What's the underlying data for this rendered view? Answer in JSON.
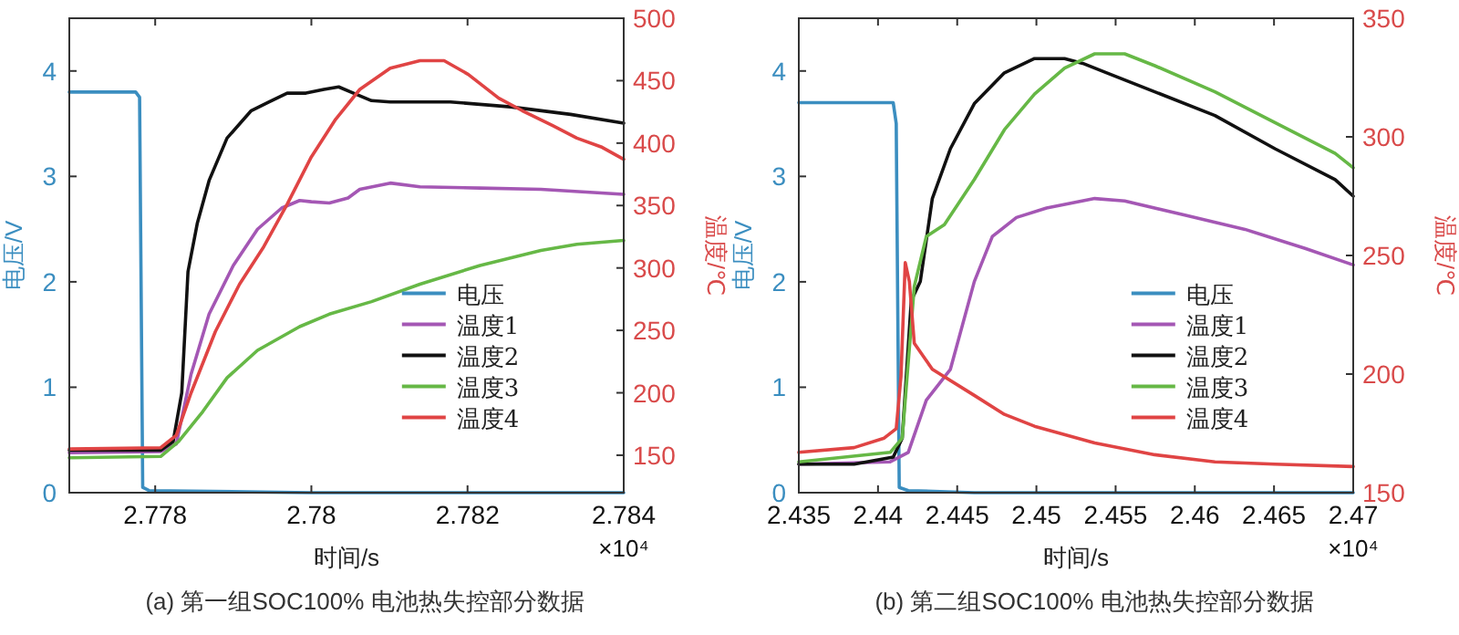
{
  "chart_data": [
    {
      "type": "line",
      "title": "(a) 第一组SOC100% 电池热失控部分数据",
      "xlabel": "时间/s",
      "ylabel": "电压/V",
      "y2label": "温度/℃",
      "annotations": [
        "×10⁴"
      ],
      "xlim": [
        2.7769,
        2.784
      ],
      "xticks": [
        2.778,
        2.78,
        2.782,
        2.784
      ],
      "ylim": [
        0,
        4.5
      ],
      "yticks": [
        0,
        1,
        2,
        3,
        4
      ],
      "y2lim": [
        120,
        500
      ],
      "y2ticks": [
        150,
        200,
        250,
        300,
        350,
        400,
        450,
        500
      ],
      "legend": "right",
      "grid": false,
      "series": [
        {
          "name": "电压",
          "color": "#3b8ec0",
          "x": [
            2.7769,
            2.77775,
            2.7778,
            2.77784,
            2.77792,
            2.78,
            2.784
          ],
          "values": [
            3.8,
            3.8,
            3.75,
            0.05,
            0.02,
            0,
            0
          ]
        },
        {
          "name": "温度1",
          "color": "#a457b4",
          "axis": "y2",
          "x": [
            2.7769,
            2.77807,
            2.77827,
            2.77846,
            2.77869,
            2.779,
            2.77931,
            2.77962,
            2.77985,
            2.78,
            2.78023,
            2.78047,
            2.78062,
            2.78101,
            2.78139,
            2.78216,
            2.78294,
            2.784
          ],
          "values": [
            152,
            153,
            159,
            215,
            263,
            302,
            331,
            348,
            354,
            353,
            352,
            356,
            363,
            368,
            365,
            364,
            363,
            359
          ]
        },
        {
          "name": "温度2",
          "color": "#111111",
          "axis": "y2",
          "x": [
            2.7769,
            2.77807,
            2.77823,
            2.77834,
            2.77842,
            2.77854,
            2.77869,
            2.77892,
            2.77923,
            2.77946,
            2.77969,
            2.77993,
            2.78016,
            2.78035,
            2.78054,
            2.78077,
            2.78101,
            2.78178,
            2.78255,
            2.78332,
            2.784
          ],
          "values": [
            154,
            154,
            161,
            200,
            297,
            336,
            370,
            404,
            426,
            433,
            440,
            440,
            443,
            445,
            440,
            434,
            433,
            433,
            429,
            423,
            416
          ]
        },
        {
          "name": "温度3",
          "color": "#66b846",
          "axis": "y2",
          "x": [
            2.7769,
            2.77807,
            2.7783,
            2.77861,
            2.77892,
            2.77931,
            2.77985,
            2.78023,
            2.78077,
            2.78139,
            2.78216,
            2.78294,
            2.7834,
            2.784
          ],
          "values": [
            148,
            149,
            161,
            185,
            212,
            234,
            253,
            263,
            273,
            287,
            302,
            314,
            319,
            322
          ]
        },
        {
          "name": "温度4",
          "color": "#e04444",
          "axis": "y2",
          "x": [
            2.7769,
            2.77807,
            2.77827,
            2.77846,
            2.77877,
            2.77908,
            2.77939,
            2.77969,
            2.78,
            2.78031,
            2.78062,
            2.78101,
            2.78139,
            2.7817,
            2.78201,
            2.7824,
            2.7827,
            2.78309,
            2.7834,
            2.78371,
            2.784
          ],
          "values": [
            155,
            156,
            166,
            200,
            249,
            287,
            317,
            351,
            389,
            419,
            443,
            460,
            466,
            466,
            455,
            436,
            426,
            414,
            404,
            397,
            387
          ]
        }
      ]
    },
    {
      "type": "line",
      "title": "(b) 第二组SOC100% 电池热失控部分数据",
      "xlabel": "时间/s",
      "ylabel": "电压/V",
      "y2label": "温度/℃",
      "annotations": [
        "×10⁴"
      ],
      "xlim": [
        2.435,
        2.47
      ],
      "xticks": [
        2.435,
        2.44,
        2.445,
        2.45,
        2.455,
        2.46,
        2.465,
        2.47
      ],
      "ylim": [
        0,
        4.5
      ],
      "yticks": [
        0,
        1,
        2,
        3,
        4
      ],
      "y2lim": [
        150,
        350
      ],
      "y2ticks": [
        150,
        200,
        250,
        300,
        350
      ],
      "legend": "right",
      "grid": false,
      "series": [
        {
          "name": "电压",
          "color": "#3b8ec0",
          "x": [
            2.435,
            2.44096,
            2.44115,
            2.44134,
            2.44191,
            2.44608,
            2.47
          ],
          "values": [
            3.7,
            3.7,
            3.5,
            0.05,
            0.02,
            0,
            0
          ]
        },
        {
          "name": "温度1",
          "color": "#a457b4",
          "axis": "y2",
          "x": [
            2.435,
            2.44077,
            2.44191,
            2.44305,
            2.44457,
            2.44608,
            2.44722,
            2.44874,
            2.45064,
            2.45368,
            2.45557,
            2.45937,
            2.46317,
            2.46696,
            2.47
          ],
          "values": [
            162,
            163,
            167,
            189,
            202,
            239,
            258,
            266,
            270,
            274,
            273,
            267,
            261,
            253,
            246
          ]
        },
        {
          "name": "温度2",
          "color": "#111111",
          "axis": "y2",
          "x": [
            2.435,
            2.43849,
            2.44096,
            2.44153,
            2.4421,
            2.44267,
            2.44343,
            2.44457,
            2.44608,
            2.44798,
            2.44988,
            2.45178,
            2.45292,
            2.45444,
            2.45747,
            2.46127,
            2.46506,
            2.46886,
            2.47
          ],
          "values": [
            162,
            162,
            165,
            173,
            231,
            239,
            274,
            295,
            314,
            327,
            333,
            333,
            331,
            327,
            319,
            309,
            295,
            282,
            275
          ]
        },
        {
          "name": "温度3",
          "color": "#66b846",
          "axis": "y2",
          "x": [
            2.435,
            2.44077,
            2.44153,
            2.44229,
            2.44305,
            2.44419,
            2.44608,
            2.44798,
            2.44988,
            2.45178,
            2.45368,
            2.45557,
            2.45747,
            2.46127,
            2.46506,
            2.46886,
            2.47
          ],
          "values": [
            163,
            167,
            173,
            237,
            258,
            263,
            282,
            303,
            318,
            329,
            335,
            335,
            330,
            319,
            306,
            293,
            287
          ]
        },
        {
          "name": "温度4",
          "color": "#e04444",
          "axis": "y2",
          "x": [
            2.435,
            2.43849,
            2.44039,
            2.44115,
            2.44145,
            2.44172,
            2.44198,
            2.44229,
            2.44343,
            2.44608,
            2.44798,
            2.44988,
            2.45368,
            2.45747,
            2.46127,
            2.46506,
            2.47
          ],
          "values": [
            167,
            169,
            173,
            177,
            199,
            247,
            239,
            213,
            202,
            191,
            183,
            178,
            171,
            166,
            163,
            162,
            161
          ]
        }
      ]
    }
  ]
}
